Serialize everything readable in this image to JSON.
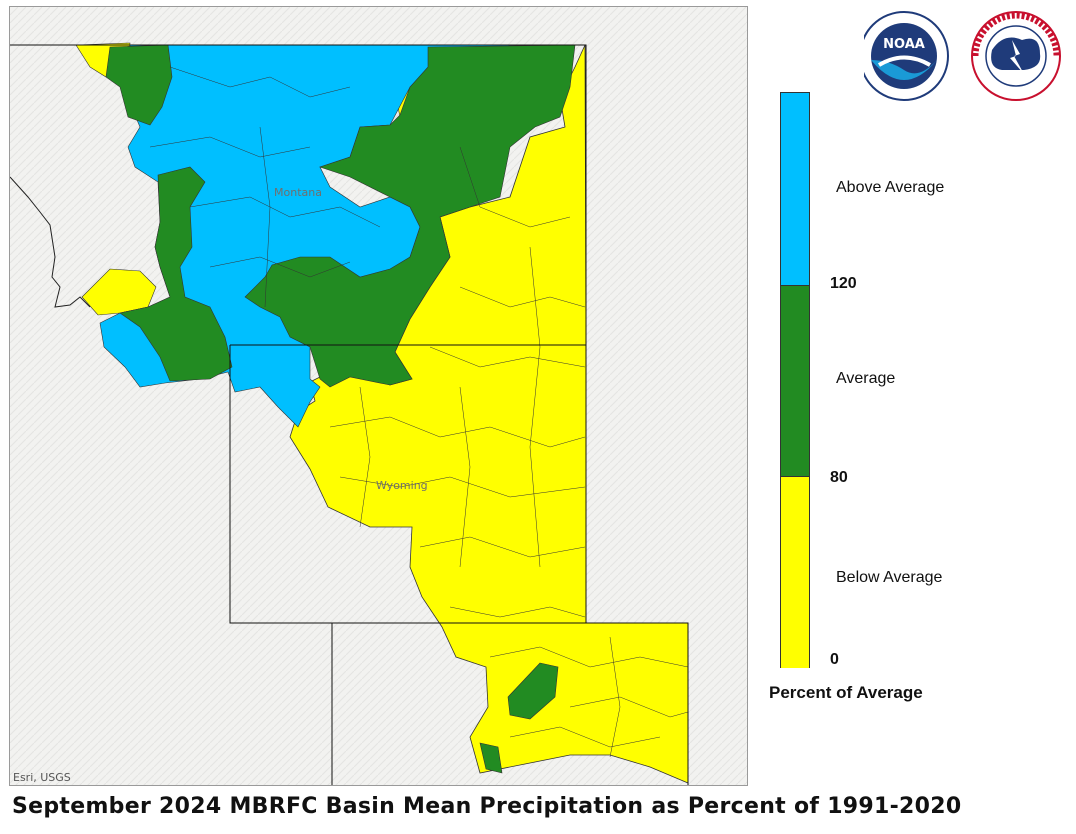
{
  "caption": "September 2024 MBRFC Basin Mean Precipitation as Percent of 1991-2020",
  "attribution": "Esri, USGS",
  "state_labels": {
    "montana": "Montana",
    "wyoming": "Wyoming"
  },
  "legend": {
    "title": "Percent of Average",
    "classes": [
      {
        "label": "Above Average",
        "color": "#00bfff"
      },
      {
        "label": "Average",
        "color": "#228b22"
      },
      {
        "label": "Below Average",
        "color": "#ffff00"
      }
    ],
    "breaks": [
      "120",
      "80",
      "0"
    ]
  },
  "logos": {
    "noaa": "NOAA",
    "nws": "NATIONAL WEATHER SERVICE"
  }
}
